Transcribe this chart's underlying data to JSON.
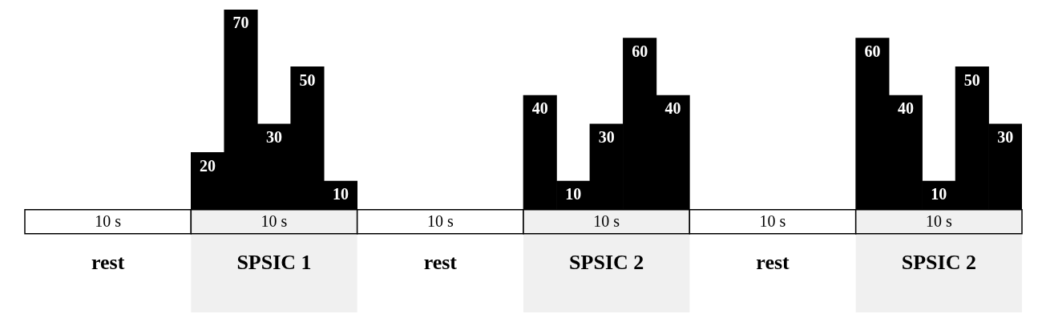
{
  "chart_data": {
    "type": "bar",
    "categories": [
      null,
      null,
      "rest",
      null,
      null,
      null,
      null,
      "SPSIC 1",
      null,
      null,
      null,
      null,
      "rest",
      null,
      null,
      null,
      null,
      "SPSIC 2",
      null,
      null,
      null,
      null,
      "rest",
      null,
      null,
      null,
      null,
      "SPSIC 2",
      null,
      null
    ],
    "values": [
      null,
      null,
      null,
      null,
      null,
      20,
      70,
      30,
      50,
      10,
      null,
      null,
      null,
      null,
      null,
      40,
      10,
      30,
      60,
      40,
      null,
      null,
      null,
      null,
      null,
      60,
      40,
      10,
      50,
      30
    ],
    "color": "#000000",
    "data_labels": true,
    "grid": false,
    "legend": false,
    "annotations": [
      "10 s",
      "10 s",
      "10 s",
      "10 s",
      "10 s",
      "10 s"
    ]
  }
}
